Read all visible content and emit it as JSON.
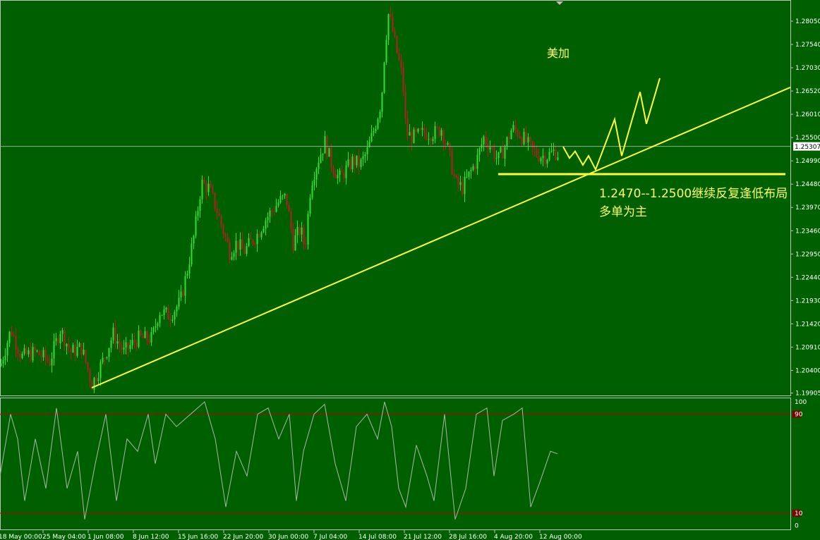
{
  "colors": {
    "background": "#006000",
    "frame": "#c0c0c0",
    "up_candle": "#33dd33",
    "down_candle": "#b02020",
    "annotation": "#ffff33",
    "oscillator": "#a8b8a8",
    "level_line": "#c00000",
    "axis_text": "#ffffff",
    "price_tag_bg": "#ffffff"
  },
  "chart_data": [
    {
      "type": "candlestick",
      "symbol_note": "美加",
      "current_price_label": "1.25307",
      "current_price": 1.25307,
      "ylim": [
        1.19905,
        1.2863
      ],
      "y_ticks": [
        "1.28050",
        "1.27540",
        "1.27030",
        "1.26520",
        "1.26010",
        "1.25500",
        "1.24990",
        "1.24480",
        "1.23970",
        "1.23460",
        "1.22950",
        "1.22440",
        "1.21930",
        "1.21420",
        "1.20910",
        "1.20400",
        "1.19905"
      ],
      "x_ticks": [
        "18 May 00:00",
        "25 May 04:00",
        "1 Jun 08:00",
        "8 Jun 12:00",
        "15 Jun 16:00",
        "22 Jun 20:00",
        "30 Jun 00:00",
        "7 Jul 04:00",
        "14 Jul 08:00",
        "21 Jul 12:00",
        "28 Jul 16:00",
        "4 Aug 20:00",
        "12 Aug 00:00"
      ],
      "price_path": [
        [
          0,
          1.205
        ],
        [
          15,
          1.213
        ],
        [
          30,
          1.207
        ],
        [
          50,
          1.208
        ],
        [
          70,
          1.206
        ],
        [
          85,
          1.213
        ],
        [
          100,
          1.208
        ],
        [
          115,
          1.209
        ],
        [
          130,
          1.201
        ],
        [
          145,
          1.206
        ],
        [
          160,
          1.212
        ],
        [
          175,
          1.208
        ],
        [
          195,
          1.211
        ],
        [
          215,
          1.211
        ],
        [
          225,
          1.217
        ],
        [
          240,
          1.216
        ],
        [
          255,
          1.219
        ],
        [
          265,
          1.226
        ],
        [
          275,
          1.234
        ],
        [
          285,
          1.245
        ],
        [
          295,
          1.244
        ],
        [
          305,
          1.24
        ],
        [
          315,
          1.235
        ],
        [
          325,
          1.23
        ],
        [
          335,
          1.232
        ],
        [
          345,
          1.23
        ],
        [
          355,
          1.232
        ],
        [
          365,
          1.234
        ],
        [
          375,
          1.237
        ],
        [
          385,
          1.239
        ],
        [
          395,
          1.241
        ],
        [
          405,
          1.242
        ],
        [
          415,
          1.232
        ],
        [
          425,
          1.235
        ],
        [
          432,
          1.231
        ],
        [
          440,
          1.245
        ],
        [
          450,
          1.25
        ],
        [
          460,
          1.254
        ],
        [
          470,
          1.249
        ],
        [
          480,
          1.246
        ],
        [
          490,
          1.248
        ],
        [
          500,
          1.25
        ],
        [
          510,
          1.249
        ],
        [
          520,
          1.252
        ],
        [
          530,
          1.257
        ],
        [
          540,
          1.263
        ],
        [
          545,
          1.275
        ],
        [
          550,
          1.282
        ],
        [
          555,
          1.279
        ],
        [
          560,
          1.275
        ],
        [
          570,
          1.268
        ],
        [
          575,
          1.256
        ],
        [
          585,
          1.255
        ],
        [
          600,
          1.256
        ],
        [
          615,
          1.256
        ],
        [
          625,
          1.257
        ],
        [
          635,
          1.252
        ],
        [
          645,
          1.245
        ],
        [
          655,
          1.244
        ],
        [
          665,
          1.247
        ],
        [
          675,
          1.25
        ],
        [
          685,
          1.255
        ],
        [
          695,
          1.253
        ],
        [
          705,
          1.25
        ],
        [
          715,
          1.253
        ],
        [
          725,
          1.257
        ],
        [
          735,
          1.256
        ],
        [
          745,
          1.254
        ],
        [
          755,
          1.252
        ],
        [
          765,
          1.251
        ],
        [
          775,
          1.251
        ],
        [
          785,
          1.252
        ],
        [
          790,
          1.2515
        ]
      ],
      "annotations": {
        "label_pair": "美加",
        "comment_line1": "1.2470--1.2500继续反复逢低布局",
        "comment_line2": "多单为主",
        "support_level": 1.247,
        "trendline": [
          [
            "1 Jun 08:00",
            1.2002
          ],
          [
            "right edge",
            1.266
          ]
        ],
        "projected_path": [
          1.253,
          1.2505,
          1.252,
          1.249,
          1.251,
          1.248,
          1.259,
          1.251,
          1.265,
          1.258,
          1.268
        ]
      }
    },
    {
      "type": "line",
      "name": "oscillator",
      "ylim": [
        0,
        100
      ],
      "y_ticks": [
        "100",
        "90",
        "10",
        "0"
      ],
      "levels": [
        90,
        10
      ],
      "values_path": [
        [
          0,
          40
        ],
        [
          15,
          90
        ],
        [
          25,
          70
        ],
        [
          35,
          20
        ],
        [
          50,
          70
        ],
        [
          65,
          30
        ],
        [
          80,
          95
        ],
        [
          95,
          30
        ],
        [
          110,
          60
        ],
        [
          120,
          5
        ],
        [
          135,
          50
        ],
        [
          150,
          90
        ],
        [
          165,
          20
        ],
        [
          180,
          70
        ],
        [
          195,
          60
        ],
        [
          210,
          90
        ],
        [
          220,
          50
        ],
        [
          235,
          90
        ],
        [
          250,
          80
        ],
        [
          270,
          90
        ],
        [
          290,
          100
        ],
        [
          305,
          70
        ],
        [
          320,
          15
        ],
        [
          335,
          60
        ],
        [
          350,
          40
        ],
        [
          365,
          90
        ],
        [
          380,
          95
        ],
        [
          395,
          70
        ],
        [
          410,
          90
        ],
        [
          420,
          20
        ],
        [
          430,
          60
        ],
        [
          445,
          90
        ],
        [
          460,
          98
        ],
        [
          475,
          50
        ],
        [
          490,
          20
        ],
        [
          505,
          80
        ],
        [
          520,
          90
        ],
        [
          535,
          70
        ],
        [
          545,
          100
        ],
        [
          555,
          80
        ],
        [
          565,
          30
        ],
        [
          575,
          15
        ],
        [
          590,
          65
        ],
        [
          605,
          40
        ],
        [
          615,
          20
        ],
        [
          630,
          90
        ],
        [
          645,
          5
        ],
        [
          660,
          30
        ],
        [
          675,
          90
        ],
        [
          690,
          95
        ],
        [
          700,
          40
        ],
        [
          712,
          85
        ],
        [
          728,
          90
        ],
        [
          740,
          95
        ],
        [
          752,
          15
        ],
        [
          765,
          35
        ],
        [
          780,
          60
        ],
        [
          790,
          58
        ]
      ]
    }
  ]
}
